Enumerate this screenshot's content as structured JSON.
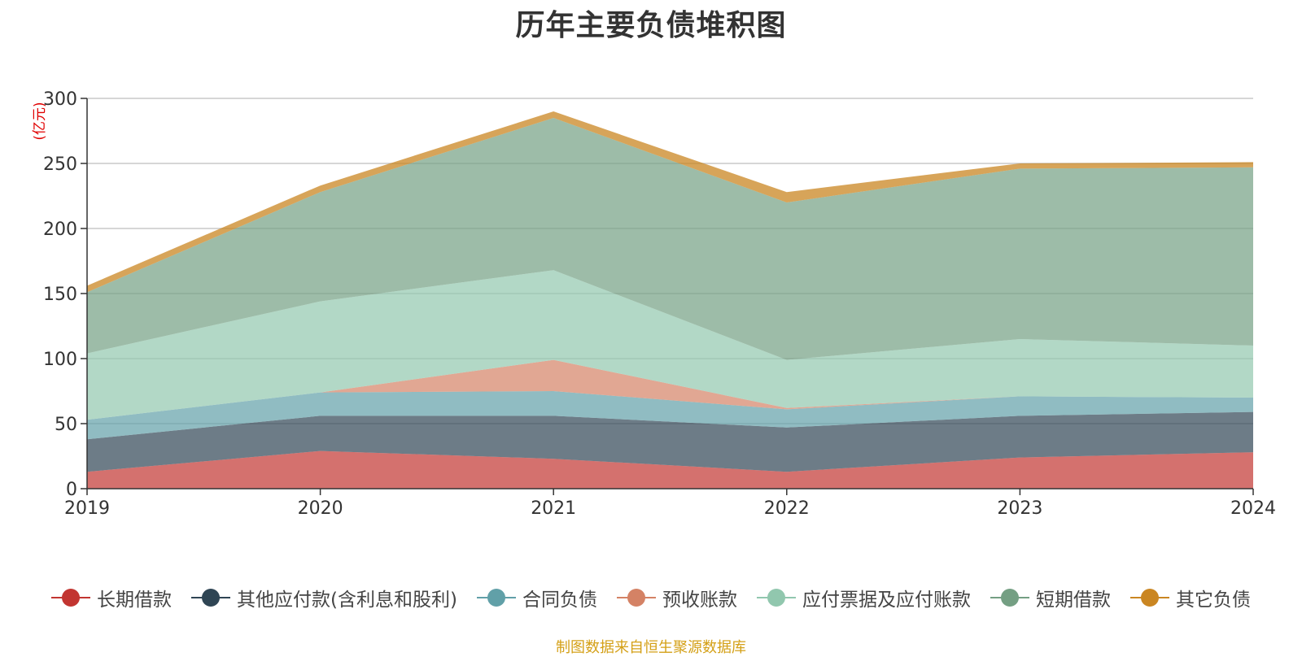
{
  "chart_data": {
    "type": "area",
    "title": "历年主要负债堆积图",
    "ylabel": "(亿元)",
    "xlabel": "",
    "categories": [
      "2019",
      "2020",
      "2021",
      "2022",
      "2023",
      "2024"
    ],
    "ylim": [
      0,
      300
    ],
    "yticks": [
      0,
      50,
      100,
      150,
      200,
      250,
      300
    ],
    "stacked": true,
    "grid": true,
    "legend_position": "bottom",
    "series": [
      {
        "name": "长期借款",
        "color": "#c23531",
        "values": [
          13,
          29,
          23,
          13,
          24,
          28
        ]
      },
      {
        "name": "其他应付款(含利息和股利)",
        "color": "#2f4554",
        "values": [
          25,
          27,
          33,
          34,
          32,
          31
        ]
      },
      {
        "name": "合同负债",
        "color": "#61a0a8",
        "values": [
          15,
          18,
          19,
          14,
          15,
          11
        ]
      },
      {
        "name": "预收账款",
        "color": "#d48265",
        "values": [
          0,
          0,
          24,
          1,
          0,
          0
        ]
      },
      {
        "name": "应付票据及应付账款",
        "color": "#91c7ae",
        "values": [
          51,
          70,
          69,
          37,
          44,
          40
        ]
      },
      {
        "name": "短期借款",
        "color": "#749f83",
        "values": [
          47,
          84,
          117,
          121,
          131,
          137
        ]
      },
      {
        "name": "其它负债",
        "color": "#ca8622",
        "values": [
          5,
          5,
          5,
          8,
          4,
          4
        ]
      }
    ],
    "source_note": "制图数据来自恒生聚源数据库"
  }
}
